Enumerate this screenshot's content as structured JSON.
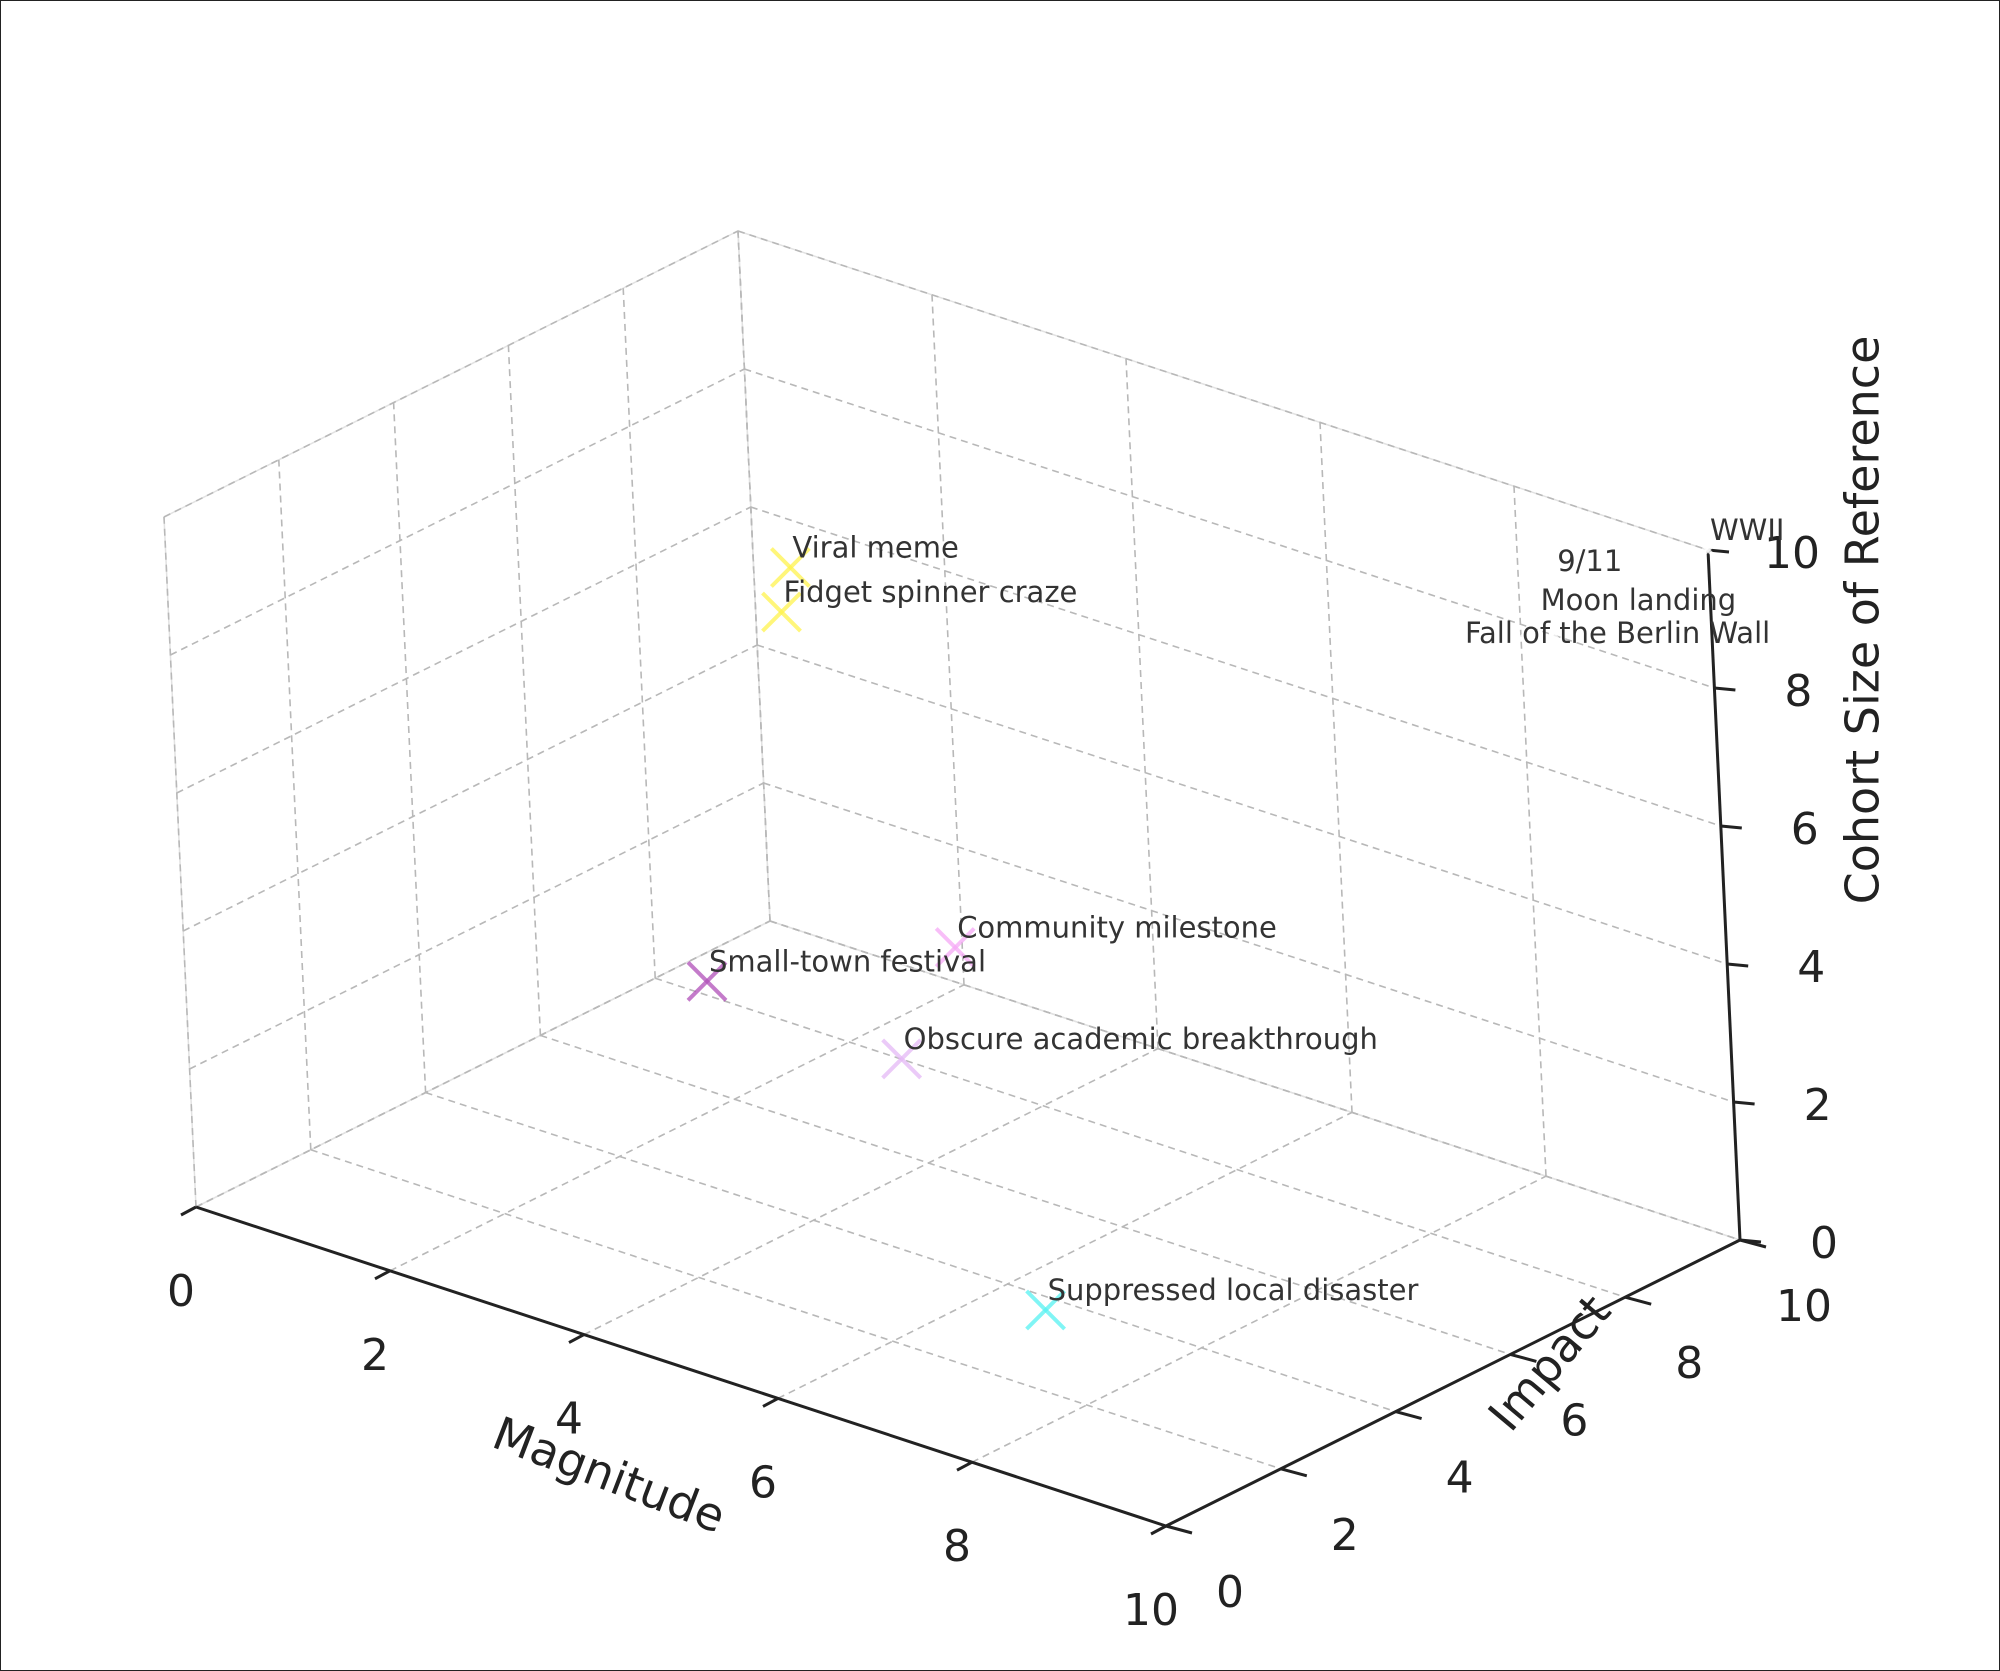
{
  "chart_data": {
    "type": "scatter",
    "projection": "3d",
    "marker": "x",
    "title": "",
    "xlabel": "Magnitude",
    "ylabel": "Impact",
    "zlabel": "Cohort Size of Reference",
    "xlim": [
      0,
      10
    ],
    "ylim": [
      0,
      10
    ],
    "zlim": [
      0,
      10
    ],
    "xticks": [
      "0",
      "2",
      "4",
      "6",
      "8",
      "10"
    ],
    "yticks": [
      "0",
      "2",
      "4",
      "6",
      "8",
      "10"
    ],
    "zticks": [
      "0",
      "2",
      "4",
      "6",
      "8",
      "10"
    ],
    "grid": true,
    "legend": "none",
    "points": [
      {
        "label": "WWII",
        "x": 10,
        "y": 10,
        "z": 10,
        "color": "#ffffff"
      },
      {
        "label": "9/11",
        "x": 9,
        "y": 9,
        "z": 9.5,
        "color": "#ffffff"
      },
      {
        "label": "Moon landing",
        "x": 8.5,
        "y": 9.5,
        "z": 8.5,
        "color": "#ffffff"
      },
      {
        "label": "Fall of the Berlin Wall",
        "x": 8,
        "y": 9,
        "z": 8,
        "color": "#ffffff"
      },
      {
        "label": "Viral meme",
        "x": 1,
        "y": 9,
        "z": 6,
        "color": "#fff34d"
      },
      {
        "label": "Fidget spinner craze",
        "x": 1.5,
        "y": 8,
        "z": 6,
        "color": "#fff34d"
      },
      {
        "label": "Community milestone",
        "x": 5,
        "y": 5,
        "z": 4,
        "color": "#f5a8f5"
      },
      {
        "label": "Small-town festival",
        "x": 3,
        "y": 4,
        "z": 3,
        "color": "#b04fb8"
      },
      {
        "label": "Obscure academic breakthrough",
        "x": 5,
        "y": 4,
        "z": 2.8,
        "color": "#e4b8f5"
      },
      {
        "label": "Suppressed local disaster",
        "x": 7,
        "y": 3,
        "z": 0.5,
        "color": "#55f2f2"
      }
    ]
  }
}
